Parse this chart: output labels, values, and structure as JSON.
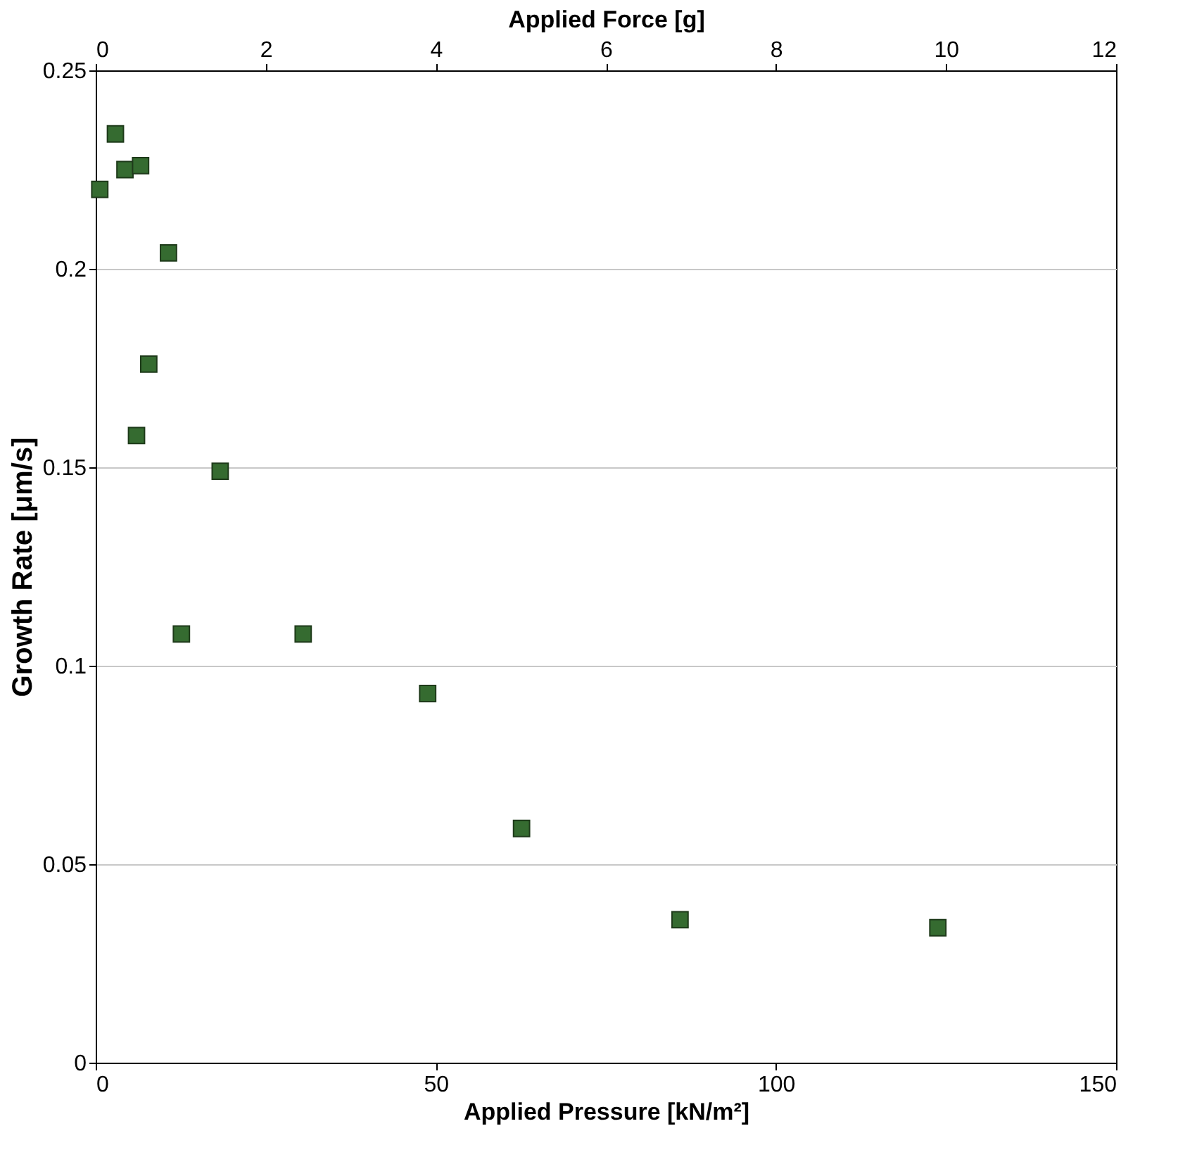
{
  "chart_data": {
    "type": "scatter",
    "xlabel": "Applied Pressure [kN/m²]",
    "ylabel": "Growth Rate [μm/s]",
    "x2label": "Applied Force [g]",
    "x": [
      0.6,
      2.9,
      4.3,
      6.6,
      10.7,
      7.8,
      6.0,
      18.3,
      12.6,
      30.5,
      48.8,
      62.6,
      85.9,
      123.8
    ],
    "series": [
      {
        "color": "#356b30",
        "values": [
          0.22,
          0.234,
          0.225,
          0.226,
          0.204,
          0.176,
          0.158,
          0.149,
          0.108,
          0.108,
          0.093,
          0.059,
          0.036,
          0.034
        ]
      }
    ],
    "xlim": [
      0,
      150
    ],
    "xticks": [
      0,
      50,
      100,
      150
    ],
    "x2lim": [
      0,
      12
    ],
    "x2ticks": [
      0,
      2,
      4,
      6,
      8,
      10,
      12
    ],
    "ylim": [
      0,
      0.25
    ],
    "yticks": [
      0,
      0.05,
      0.1,
      0.15,
      0.2,
      0.25
    ],
    "grid": "y",
    "marker": "square"
  }
}
